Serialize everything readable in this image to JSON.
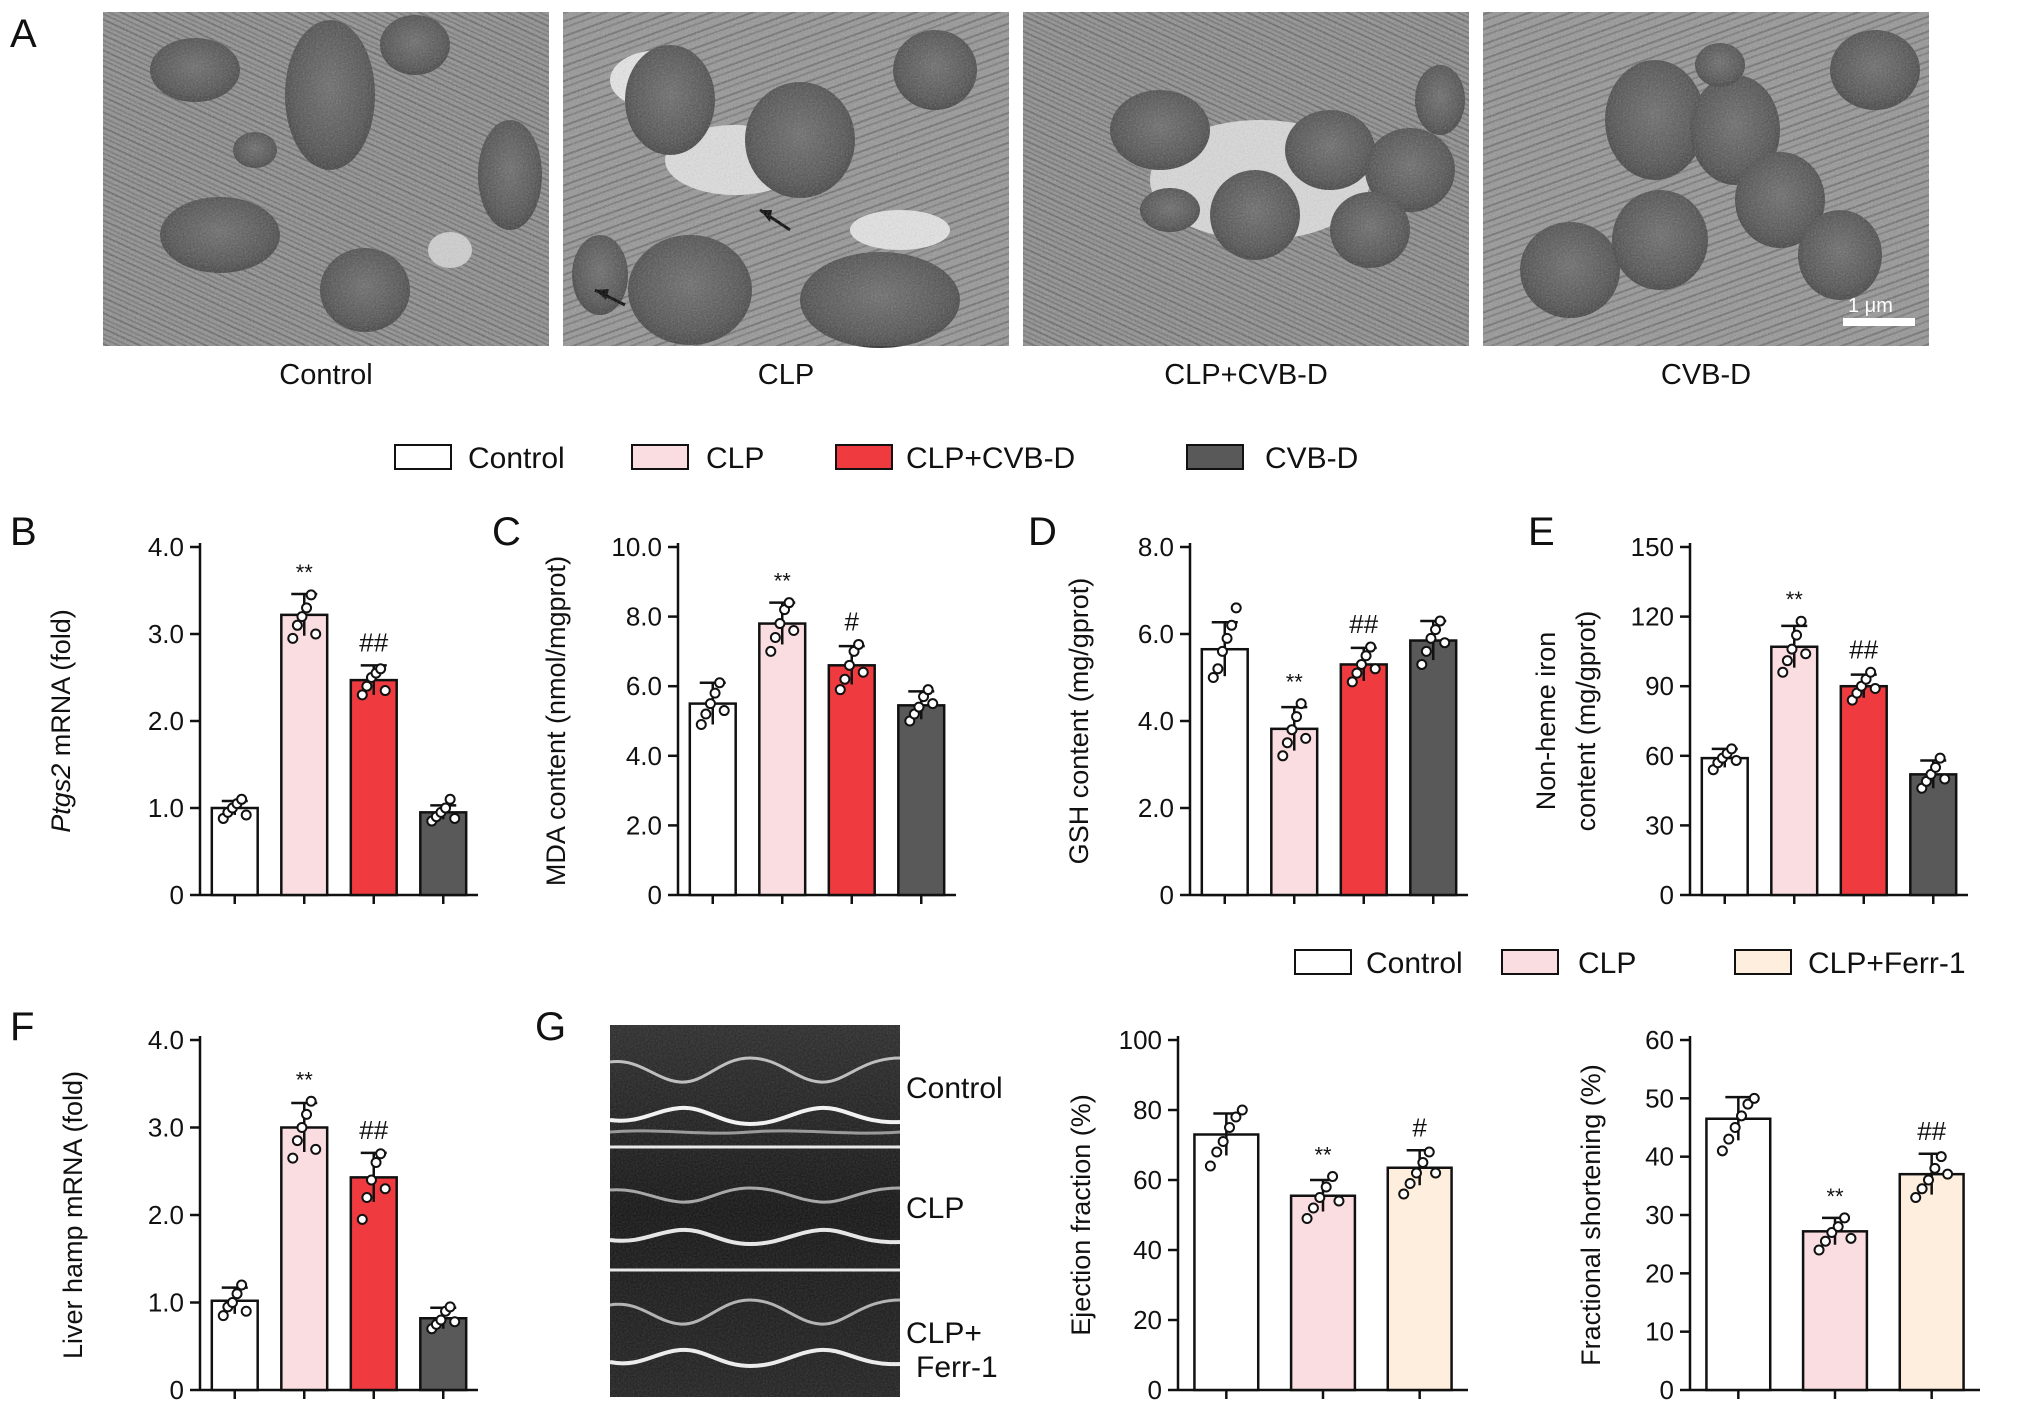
{
  "panel_letters": [
    "A",
    "B",
    "C",
    "D",
    "E",
    "F",
    "G"
  ],
  "panelA": {
    "captions": [
      "Control",
      "CLP",
      "CLP+CVB-D",
      "CVB-D"
    ],
    "scale_bar": "1 μm"
  },
  "legend_top": [
    {
      "label": "Control",
      "color": "#ffffff"
    },
    {
      "label": "CLP",
      "color": "#f9dde0"
    },
    {
      "label": "CLP+CVB-D",
      "color": "#ef3b3f"
    },
    {
      "label": "CVB-D",
      "color": "#595959"
    }
  ],
  "legend_G": [
    {
      "label": "Control",
      "color": "#ffffff"
    },
    {
      "label": "CLP",
      "color": "#f9dde0"
    },
    {
      "label": "CLP+Ferr-1",
      "color": "#fdeedd"
    }
  ],
  "echo_labels": [
    "Control",
    "CLP",
    "CLP+",
    "Ferr-1"
  ],
  "colors": {
    "control": "#ffffff",
    "clp": "#f9dde0",
    "clp_cvbd": "#ef3b3f",
    "cvbd": "#595959",
    "clp_ferr1": "#fdeedd",
    "axis": "#111111"
  },
  "chart_data": [
    {
      "id": "B",
      "type": "bar",
      "ylabel_italic": "Ptgs2",
      "ylabel_rest": " mRNA (fold)",
      "categories": [
        "Control",
        "CLP",
        "CLP+CVB-D",
        "CVB-D"
      ],
      "values": [
        1.0,
        3.22,
        2.47,
        0.95
      ],
      "errors": [
        0.08,
        0.24,
        0.17,
        0.08
      ],
      "ylim": [
        0,
        4
      ],
      "yticks": [
        0,
        1,
        2,
        3,
        4
      ],
      "ytick_labels": [
        "0",
        "1.0",
        "2.0",
        "3.0",
        "4.0"
      ],
      "significance": [
        "",
        "**",
        "##",
        ""
      ],
      "points": [
        [
          0.88,
          0.95,
          1.0,
          1.05,
          1.1,
          0.92
        ],
        [
          2.95,
          3.1,
          3.2,
          3.3,
          3.45,
          3.0
        ],
        [
          2.3,
          2.4,
          2.5,
          2.55,
          2.6,
          2.35
        ],
        [
          0.85,
          0.9,
          0.95,
          1.0,
          1.1,
          0.88
        ]
      ]
    },
    {
      "id": "C",
      "type": "bar",
      "ylabel": "MDA content (nmol/mgprot)",
      "categories": [
        "Control",
        "CLP",
        "CLP+CVB-D",
        "CVB-D"
      ],
      "values": [
        5.5,
        7.8,
        6.6,
        5.45
      ],
      "errors": [
        0.6,
        0.6,
        0.55,
        0.4
      ],
      "ylim": [
        0,
        10
      ],
      "yticks": [
        0,
        2,
        4,
        6,
        8,
        10
      ],
      "ytick_labels": [
        "0",
        "2.0",
        "4.0",
        "6.0",
        "8.0",
        "10.0"
      ],
      "significance": [
        "",
        "**",
        "#",
        ""
      ],
      "points": [
        [
          4.9,
          5.2,
          5.5,
          5.8,
          6.1,
          5.3
        ],
        [
          7.0,
          7.4,
          7.8,
          8.2,
          8.4,
          7.6
        ],
        [
          5.9,
          6.2,
          6.6,
          7.0,
          7.2,
          6.4
        ],
        [
          5.0,
          5.2,
          5.4,
          5.7,
          5.9,
          5.5
        ]
      ]
    },
    {
      "id": "D",
      "type": "bar",
      "ylabel": "GSH content (mg/gprot)",
      "categories": [
        "Control",
        "CLP",
        "CLP+CVB-D",
        "CVB-D"
      ],
      "values": [
        5.65,
        3.82,
        5.3,
        5.85
      ],
      "errors": [
        0.62,
        0.5,
        0.38,
        0.45
      ],
      "ylim": [
        0,
        8
      ],
      "yticks": [
        0,
        2,
        4,
        6,
        8
      ],
      "ytick_labels": [
        "0",
        "2.0",
        "4.0",
        "6.0",
        "8.0"
      ],
      "significance": [
        "",
        "**",
        "##",
        ""
      ],
      "points": [
        [
          5.0,
          5.2,
          5.6,
          5.9,
          6.2,
          6.6
        ],
        [
          3.2,
          3.5,
          3.8,
          4.1,
          4.4,
          3.6
        ],
        [
          4.9,
          5.1,
          5.3,
          5.5,
          5.7,
          5.2
        ],
        [
          5.3,
          5.6,
          5.9,
          6.1,
          6.3,
          5.8
        ]
      ]
    },
    {
      "id": "E",
      "type": "bar",
      "ylabel_lines": [
        "Non-heme iron",
        "content (mg/gprot)"
      ],
      "categories": [
        "Control",
        "CLP",
        "CLP+CVB-D",
        "CVB-D"
      ],
      "values": [
        59,
        107,
        90,
        52
      ],
      "errors": [
        4,
        9,
        5,
        6
      ],
      "ylim": [
        0,
        150
      ],
      "yticks": [
        0,
        30,
        60,
        90,
        120,
        150
      ],
      "ytick_labels": [
        "0",
        "30",
        "60",
        "90",
        "120",
        "150"
      ],
      "significance": [
        "",
        "**",
        "##",
        ""
      ],
      "points": [
        [
          54,
          57,
          59,
          61,
          63,
          58
        ],
        [
          96,
          101,
          106,
          112,
          118,
          104
        ],
        [
          84,
          87,
          90,
          93,
          96,
          89
        ],
        [
          46,
          49,
          52,
          55,
          59,
          50
        ]
      ]
    },
    {
      "id": "F",
      "type": "bar",
      "ylabel": "Liver hamp mRNA (fold)",
      "categories": [
        "Control",
        "CLP",
        "CLP+CVB-D",
        "CVB-D"
      ],
      "values": [
        1.02,
        3.0,
        2.43,
        0.82
      ],
      "errors": [
        0.15,
        0.28,
        0.28,
        0.12
      ],
      "ylim": [
        0,
        4
      ],
      "yticks": [
        0,
        1,
        2,
        3,
        4
      ],
      "ytick_labels": [
        "0",
        "1.0",
        "2.0",
        "3.0",
        "4.0"
      ],
      "significance": [
        "",
        "**",
        "##",
        ""
      ],
      "points": [
        [
          0.85,
          0.95,
          1.0,
          1.1,
          1.2,
          0.9
        ],
        [
          2.65,
          2.85,
          3.0,
          3.15,
          3.3,
          2.75
        ],
        [
          1.95,
          2.2,
          2.4,
          2.6,
          2.7,
          2.3
        ],
        [
          0.7,
          0.75,
          0.8,
          0.9,
          0.95,
          0.78
        ]
      ]
    },
    {
      "id": "G1",
      "type": "bar",
      "ylabel": "Ejection fraction (%)",
      "categories": [
        "Control",
        "CLP",
        "CLP+Ferr-1"
      ],
      "values": [
        73,
        55.5,
        63.5
      ],
      "errors": [
        6,
        4.5,
        5
      ],
      "ylim": [
        0,
        100
      ],
      "yticks": [
        0,
        20,
        40,
        60,
        80,
        100
      ],
      "ytick_labels": [
        "0",
        "20",
        "40",
        "60",
        "80",
        "100"
      ],
      "significance": [
        "",
        "**",
        "#"
      ],
      "points": [
        [
          64,
          68,
          71,
          75,
          78,
          80
        ],
        [
          49,
          52,
          55,
          58,
          61,
          54
        ],
        [
          56,
          59,
          62,
          65,
          68,
          62
        ]
      ]
    },
    {
      "id": "G2",
      "type": "bar",
      "ylabel": "Fractional shortening (%)",
      "categories": [
        "Control",
        "CLP",
        "CLP+Ferr-1"
      ],
      "values": [
        46.5,
        27.2,
        37
      ],
      "errors": [
        3.7,
        2.3,
        3.5
      ],
      "ylim": [
        0,
        60
      ],
      "yticks": [
        0,
        10,
        20,
        30,
        40,
        50,
        60
      ],
      "ytick_labels": [
        "0",
        "10",
        "20",
        "30",
        "40",
        "50",
        "60"
      ],
      "significance": [
        "",
        "**",
        "##"
      ],
      "points": [
        [
          41,
          43,
          45,
          47,
          49,
          50
        ],
        [
          24,
          25.5,
          27,
          28,
          29.5,
          26
        ],
        [
          33,
          34.5,
          36,
          38,
          40,
          37
        ]
      ]
    }
  ]
}
